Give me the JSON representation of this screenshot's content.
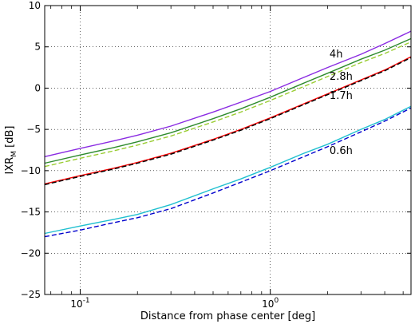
{
  "chart_data": {
    "type": "line",
    "xscale": "log",
    "xlabel": "Distance from phase center [deg]",
    "ylabel": "IXR_M [dB]",
    "ylabel_main": "IXR",
    "ylabel_sub": "M",
    "ylabel_unit": " [dB]",
    "xlim": [
      0.065,
      5.5
    ],
    "ylim": [
      -25,
      10
    ],
    "grid": true,
    "x_ticks": [
      0.1,
      1
    ],
    "x_tick_labels": [
      "10",
      "10"
    ],
    "x_tick_exponents": [
      "-1",
      "0"
    ],
    "y_ticks": [
      -25,
      -20,
      -15,
      -10,
      -5,
      0,
      5,
      10
    ],
    "y_tick_labels": [
      "−25",
      "−20",
      "−15",
      "−10",
      "−5",
      "0",
      "5",
      "10"
    ],
    "annotations": [
      {
        "text": "4h",
        "x": 2.05,
        "y": 3.7
      },
      {
        "text": "2.8h",
        "x": 2.05,
        "y": 1.0
      },
      {
        "text": "1.7h",
        "x": 2.05,
        "y": -1.3
      },
      {
        "text": "0.6h",
        "x": 2.05,
        "y": -8.0
      }
    ],
    "series": [
      {
        "color": "#8a2be2",
        "dash": "solid",
        "x": [
          0.065,
          0.1,
          0.15,
          0.2,
          0.3,
          0.5,
          0.7,
          1.0,
          1.5,
          2.0,
          3.0,
          4.0,
          5.5
        ],
        "y": [
          -8.3,
          -7.3,
          -6.4,
          -5.7,
          -4.6,
          -2.9,
          -1.7,
          -0.4,
          1.3,
          2.5,
          4.1,
          5.4,
          6.9
        ]
      },
      {
        "color": "#2e8b2e",
        "dash": "solid",
        "x": [
          0.065,
          0.1,
          0.15,
          0.2,
          0.3,
          0.5,
          0.7,
          1.0,
          1.5,
          2.0,
          3.0,
          4.0,
          5.5
        ],
        "y": [
          -9.1,
          -8.1,
          -7.2,
          -6.5,
          -5.4,
          -3.7,
          -2.5,
          -1.1,
          0.6,
          1.8,
          3.5,
          4.6,
          6.0
        ]
      },
      {
        "color": "#9acd32",
        "dash": "dashed",
        "x": [
          0.065,
          0.1,
          0.15,
          0.2,
          0.3,
          0.5,
          0.7,
          1.0,
          1.5,
          2.0,
          3.0,
          4.0,
          5.5
        ],
        "y": [
          -9.5,
          -8.5,
          -7.6,
          -6.9,
          -5.8,
          -4.1,
          -2.9,
          -1.5,
          0.2,
          1.4,
          3.1,
          4.2,
          5.6
        ]
      },
      {
        "color": "#ff0000",
        "dash": "solid",
        "x": [
          0.065,
          0.1,
          0.15,
          0.2,
          0.3,
          0.5,
          0.7,
          1.0,
          1.5,
          2.0,
          3.0,
          4.0,
          5.5
        ],
        "y": [
          -11.6,
          -10.6,
          -9.7,
          -9.0,
          -7.9,
          -6.2,
          -5.0,
          -3.6,
          -1.9,
          -0.7,
          1.0,
          2.2,
          3.8
        ]
      },
      {
        "color": "#000000",
        "dash": "dashed",
        "x": [
          0.065,
          0.1,
          0.15,
          0.2,
          0.3,
          0.5,
          0.7,
          1.0,
          1.5,
          2.0,
          3.0,
          4.0,
          5.5
        ],
        "y": [
          -11.7,
          -10.7,
          -9.8,
          -9.1,
          -8.0,
          -6.3,
          -5.1,
          -3.7,
          -2.0,
          -0.8,
          0.9,
          2.1,
          3.7
        ]
      },
      {
        "color": "#20c0d0",
        "dash": "solid",
        "x": [
          0.065,
          0.1,
          0.15,
          0.2,
          0.3,
          0.5,
          0.7,
          1.0,
          1.5,
          2.0,
          3.0,
          4.0,
          5.5
        ],
        "y": [
          -17.6,
          -16.7,
          -15.9,
          -15.3,
          -14.1,
          -12.2,
          -11.0,
          -9.6,
          -7.9,
          -6.8,
          -5.0,
          -3.8,
          -2.2
        ]
      },
      {
        "color": "#0000cd",
        "dash": "dashed",
        "x": [
          0.065,
          0.1,
          0.15,
          0.2,
          0.3,
          0.5,
          0.7,
          1.0,
          1.5,
          2.0,
          3.0,
          4.0,
          5.5
        ],
        "y": [
          -18.0,
          -17.2,
          -16.3,
          -15.7,
          -14.6,
          -12.7,
          -11.4,
          -10.0,
          -8.3,
          -7.1,
          -5.3,
          -4.0,
          -2.4
        ]
      }
    ]
  }
}
